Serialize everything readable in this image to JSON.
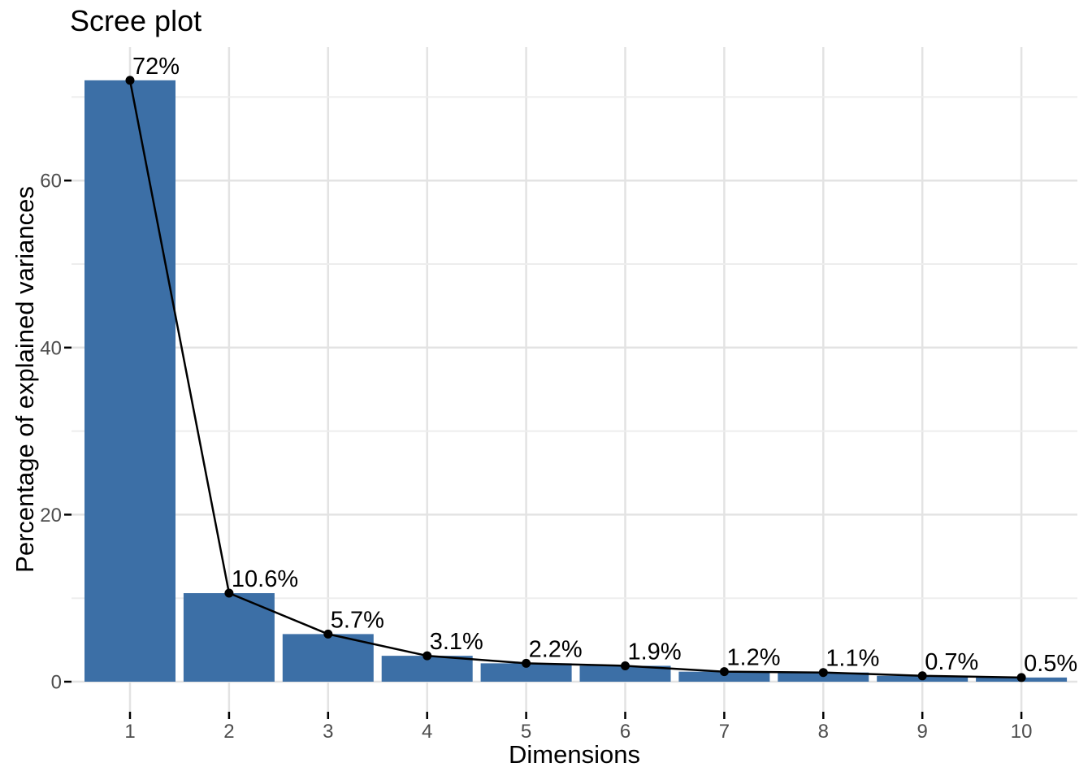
{
  "chart_data": {
    "type": "bar",
    "title": "Scree plot",
    "xlabel": "Dimensions",
    "ylabel": "Percentage of explained variances",
    "categories": [
      1,
      2,
      3,
      4,
      5,
      6,
      7,
      8,
      9,
      10
    ],
    "values": [
      72,
      10.6,
      5.7,
      3.1,
      2.2,
      1.9,
      1.2,
      1.1,
      0.7,
      0.5
    ],
    "value_labels": [
      "72%",
      "10.6%",
      "5.7%",
      "3.1%",
      "2.2%",
      "1.9%",
      "1.2%",
      "1.1%",
      "0.7%",
      "0.5%"
    ],
    "overlay_line": true,
    "yticks": [
      0,
      20,
      40,
      60
    ],
    "yticks_minor": [
      10,
      30,
      50,
      70
    ],
    "ylim": [
      -3.6,
      75.6
    ],
    "grid": true,
    "legend": "none",
    "colors": {
      "bar": "#3C6FA6",
      "line": "#000000",
      "point": "#000000",
      "grid_major": "#E3E3E3",
      "grid_minor": "#EDEDED",
      "tick_mark": "#000000",
      "tick_label": "#4D4D4D",
      "text": "#000000",
      "background": "#FFFFFF"
    }
  }
}
